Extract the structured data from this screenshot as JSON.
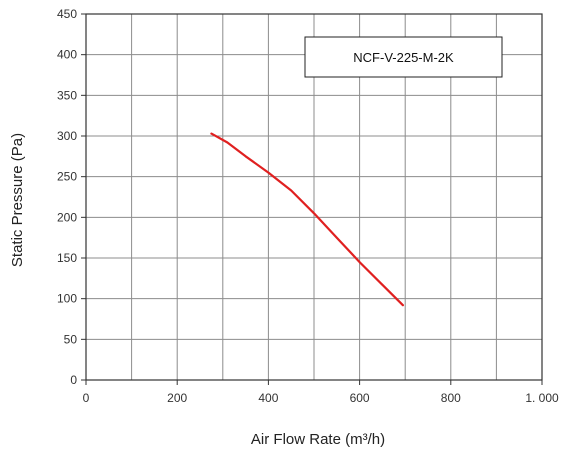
{
  "chart_data": {
    "type": "line",
    "title": "",
    "xlabel": "Air Flow Rate (m³/h)",
    "ylabel": "Static Pressure (Pa)",
    "xlim": [
      0,
      1000
    ],
    "ylim": [
      0,
      450
    ],
    "x_ticks": [
      0,
      200,
      400,
      600,
      800,
      1000
    ],
    "x_tick_labels": [
      "0",
      "200",
      "400",
      "600",
      "800",
      "1. 000"
    ],
    "x_minor_step": 100,
    "y_ticks": [
      0,
      50,
      100,
      150,
      200,
      250,
      300,
      350,
      400,
      450
    ],
    "y_tick_labels": [
      "0",
      "50",
      "100",
      "150",
      "200",
      "250",
      "300",
      "350",
      "400",
      "450"
    ],
    "grid": true,
    "legend_position": "top-right",
    "series": [
      {
        "name": "NCF-V-225-M-2K",
        "color": "#e02020",
        "x": [
          275,
          310,
          350,
          400,
          450,
          500,
          550,
          600,
          650,
          695
        ],
        "y": [
          303,
          292,
          275,
          255,
          233,
          205,
          175,
          145,
          117,
          92
        ]
      }
    ]
  }
}
